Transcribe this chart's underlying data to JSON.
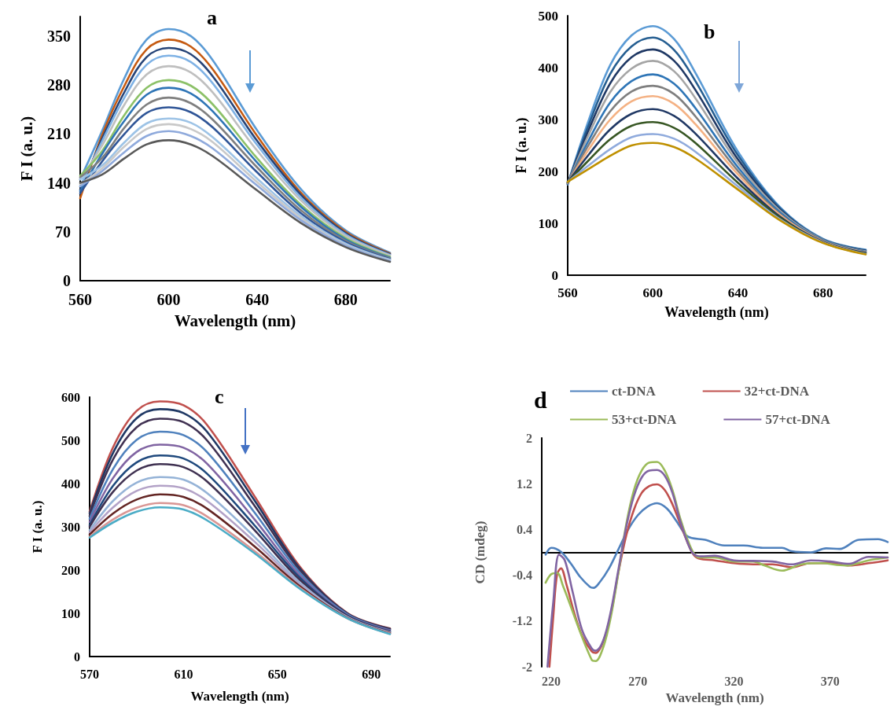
{
  "chart_data": [
    {
      "type": "line",
      "title": "a",
      "xlabel": "Wavelength (nm)",
      "ylabel": "F I (a. u.)",
      "x": [
        560,
        570,
        580,
        590,
        600,
        610,
        620,
        640,
        660,
        680,
        700
      ],
      "xlim": [
        560,
        700
      ],
      "xticks": [
        560,
        600,
        640,
        680
      ],
      "ylim": [
        0,
        378
      ],
      "yticks": [
        0,
        70,
        140,
        210,
        280,
        350
      ],
      "grid": false,
      "legend": false,
      "series": [
        {
          "color": "#5b9bd5",
          "values": [
            145,
            215,
            290,
            345,
            360,
            350,
            315,
            215,
            130,
            72,
            40
          ]
        },
        {
          "color": "#c55a11",
          "values": [
            118,
            209,
            279,
            331,
            345,
            335,
            302,
            207,
            125,
            70,
            39
          ]
        },
        {
          "color": "#264478",
          "values": [
            130,
            204,
            270,
            320,
            333,
            324,
            292,
            200,
            122,
            68,
            38
          ]
        },
        {
          "color": "#7fb2e5",
          "values": [
            135,
            200,
            262,
            309,
            322,
            313,
            282,
            194,
            118,
            66,
            37
          ]
        },
        {
          "color": "#bfbfbf",
          "values": [
            145,
            194,
            252,
            295,
            307,
            298,
            269,
            186,
            114,
            64,
            36
          ]
        },
        {
          "color": "#8cc168",
          "values": [
            150,
            186,
            237,
            276,
            287,
            279,
            252,
            175,
            108,
            61,
            34
          ]
        },
        {
          "color": "#2e75b6",
          "values": [
            128,
            182,
            229,
            266,
            276,
            268,
            242,
            169,
            105,
            59,
            33
          ]
        },
        {
          "color": "#7f7f7f",
          "values": [
            148,
            176,
            219,
            252,
            262,
            254,
            230,
            162,
            100,
            57,
            32
          ]
        },
        {
          "color": "#2f5597",
          "values": [
            125,
            171,
            210,
            240,
            248,
            241,
            219,
            155,
            96,
            55,
            31
          ]
        },
        {
          "color": "#9dc3e6",
          "values": [
            145,
            165,
            198,
            225,
            232,
            226,
            205,
            146,
            92,
            53,
            30
          ]
        },
        {
          "color": "#c9c9c9",
          "values": [
            138,
            161,
            192,
            217,
            224,
            217,
            198,
            141,
            89,
            51,
            29
          ]
        },
        {
          "color": "#8faadc",
          "values": [
            135,
            157,
            184,
            207,
            214,
            207,
            189,
            136,
            86,
            50,
            28
          ]
        },
        {
          "color": "#595959",
          "values": [
            140,
            152,
            175,
            195,
            201,
            195,
            178,
            129,
            82,
            48,
            27
          ]
        }
      ]
    },
    {
      "type": "line",
      "title": "b",
      "xlabel": "Wavelength (nm)",
      "ylabel": "F I (a. u.)",
      "x": [
        560,
        570,
        580,
        590,
        600,
        610,
        620,
        640,
        660,
        680,
        700
      ],
      "xlim": [
        560,
        700
      ],
      "xticks": [
        560,
        600,
        640,
        680
      ],
      "ylim": [
        0,
        500
      ],
      "yticks": [
        0,
        100,
        200,
        300,
        400,
        500
      ],
      "grid": false,
      "legend": false,
      "series": [
        {
          "color": "#5b9bd5",
          "values": [
            175,
            300,
            405,
            462,
            480,
            455,
            390,
            238,
            130,
            70,
            49
          ]
        },
        {
          "color": "#255e91",
          "values": [
            176,
            291,
            388,
            441,
            458,
            434,
            374,
            231,
            128,
            69,
            48
          ]
        },
        {
          "color": "#1f3864",
          "values": [
            176,
            281,
            370,
            420,
            435,
            413,
            357,
            223,
            125,
            68,
            47
          ]
        },
        {
          "color": "#a5a5a5",
          "values": [
            177,
            272,
            353,
            398,
            413,
            393,
            341,
            216,
            123,
            68,
            46
          ]
        },
        {
          "color": "#2e75b6",
          "values": [
            177,
            261,
            333,
            374,
            387,
            369,
            322,
            208,
            120,
            67,
            45
          ]
        },
        {
          "color": "#7f7f7f",
          "values": [
            178,
            252,
            316,
            354,
            365,
            349,
            306,
            201,
            117,
            66,
            44
          ]
        },
        {
          "color": "#f4b183",
          "values": [
            178,
            243,
            300,
            335,
            345,
            330,
            291,
            194,
            115,
            65,
            44
          ]
        },
        {
          "color": "#203864",
          "values": [
            179,
            233,
            281,
            311,
            320,
            307,
            273,
            186,
            112,
            64,
            43
          ]
        },
        {
          "color": "#375623",
          "values": [
            179,
            222,
            262,
            288,
            295,
            284,
            255,
            178,
            110,
            63,
            42
          ]
        },
        {
          "color": "#8faadc",
          "values": [
            180,
            212,
            243,
            266,
            272,
            263,
            238,
            171,
            107,
            63,
            41
          ]
        },
        {
          "color": "#bf9000",
          "values": [
            180,
            205,
            230,
            250,
            255,
            247,
            225,
            165,
            105,
            62,
            40
          ]
        }
      ]
    },
    {
      "type": "line",
      "title": "c",
      "xlabel": "Wavelength (nm)",
      "ylabel": "F I (a. u.)",
      "x": [
        570,
        580,
        590,
        600,
        610,
        620,
        640,
        660,
        680,
        698
      ],
      "xlim": [
        570,
        698
      ],
      "xticks": [
        570,
        610,
        650,
        690
      ],
      "ylim": [
        0,
        600
      ],
      "yticks": [
        0,
        100,
        200,
        300,
        400,
        500,
        600
      ],
      "grid": false,
      "legend": false,
      "series": [
        {
          "color": "#c0504d",
          "values": [
            335,
            484,
            568,
            590,
            581,
            536,
            373,
            205,
            100,
            65
          ]
        },
        {
          "color": "#1f3864",
          "values": [
            331,
            471,
            551,
            572,
            563,
            520,
            363,
            201,
            99,
            64
          ]
        },
        {
          "color": "#403152",
          "values": [
            325,
            456,
            530,
            550,
            542,
            500,
            351,
            197,
            98,
            63
          ]
        },
        {
          "color": "#4f81bd",
          "values": [
            318,
            434,
            501,
            520,
            512,
            473,
            335,
            191,
            97,
            61
          ]
        },
        {
          "color": "#8064a2",
          "values": [
            311,
            413,
            473,
            490,
            483,
            446,
            319,
            185,
            95,
            60
          ]
        },
        {
          "color": "#1f497d",
          "values": [
            304,
            395,
            449,
            465,
            458,
            423,
            305,
            180,
            94,
            58
          ]
        },
        {
          "color": "#3f3151",
          "values": [
            300,
            381,
            430,
            445,
            438,
            405,
            294,
            175,
            93,
            57
          ]
        },
        {
          "color": "#95b3d7",
          "values": [
            292,
            360,
            402,
            415,
            409,
            378,
            278,
            169,
            91,
            56
          ]
        },
        {
          "color": "#b3a2c7",
          "values": [
            287,
            345,
            383,
            395,
            389,
            360,
            267,
            165,
            90,
            55
          ]
        },
        {
          "color": "#632523",
          "values": [
            282,
            331,
            363,
            375,
            369,
            342,
            256,
            161,
            89,
            54
          ]
        },
        {
          "color": "#d99694",
          "values": [
            277,
            317,
            344,
            355,
            350,
            324,
            245,
            157,
            88,
            53
          ]
        },
        {
          "color": "#4bacc6",
          "values": [
            275,
            310,
            335,
            345,
            340,
            315,
            240,
            155,
            88,
            52
          ]
        }
      ]
    },
    {
      "type": "line",
      "title": "d",
      "xlabel": "Wavelength (nm)",
      "ylabel": "CD (mdeg)",
      "xlim": [
        220,
        400
      ],
      "xticks": [
        220,
        270,
        320,
        370
      ],
      "ylim": [
        -2,
        2
      ],
      "yticks": [
        -2,
        -1.2,
        -0.4,
        0.4,
        1.2,
        2
      ],
      "grid": false,
      "legend": "top",
      "series": [
        {
          "name": "ct-DNA",
          "color": "#4f81bd",
          "x": [
            222,
            225,
            230,
            235,
            240,
            245,
            247,
            250,
            255,
            260,
            265,
            270,
            275,
            280,
            285,
            290,
            295,
            298,
            305,
            315,
            325,
            335,
            345,
            350,
            360,
            368,
            375,
            385,
            395,
            400
          ],
          "values": [
            -0.04,
            0.08,
            0.01,
            -0.19,
            -0.43,
            -0.6,
            -0.62,
            -0.53,
            -0.28,
            0.06,
            0.4,
            0.65,
            0.8,
            0.86,
            0.77,
            0.55,
            0.3,
            0.25,
            0.22,
            0.12,
            0.12,
            0.08,
            0.08,
            0.02,
            0,
            0.07,
            0.06,
            0.22,
            0.23,
            0.18
          ]
        },
        {
          "name": "32+ct-DNA",
          "color": "#c0504d",
          "x": [
            224,
            226,
            228,
            230,
            233,
            237,
            241,
            246,
            248,
            252,
            256,
            260,
            264,
            268,
            272,
            276,
            280,
            284,
            288,
            292,
            296,
            299,
            302,
            310,
            320,
            330,
            340,
            350,
            360,
            370,
            380,
            390,
            400
          ],
          "values": [
            -2,
            -1.12,
            -0.38,
            -0.28,
            -0.58,
            -1.07,
            -1.46,
            -1.73,
            -1.76,
            -1.56,
            -1.07,
            -0.33,
            0.3,
            0.75,
            1.04,
            1.16,
            1.19,
            1.09,
            0.84,
            0.5,
            0.16,
            -0.04,
            -0.11,
            -0.14,
            -0.19,
            -0.21,
            -0.21,
            -0.26,
            -0.19,
            -0.19,
            -0.23,
            -0.19,
            -0.14
          ]
        },
        {
          "name": "53+ct-DNA",
          "color": "#9bbb59",
          "x": [
            222,
            225,
            228,
            231,
            246,
            248,
            252,
            256,
            260,
            264,
            268,
            272,
            276,
            280,
            284,
            288,
            292,
            296,
            299,
            302,
            310,
            320,
            330,
            336,
            345,
            355,
            365,
            378,
            390,
            400
          ],
          "values": [
            -0.53,
            -0.38,
            -0.36,
            -0.58,
            -1.88,
            -1.9,
            -1.66,
            -1.12,
            -0.33,
            0.5,
            1.09,
            1.43,
            1.57,
            1.58,
            1.43,
            1.09,
            0.6,
            0.21,
            -0.01,
            -0.09,
            -0.09,
            -0.16,
            -0.16,
            -0.23,
            -0.32,
            -0.21,
            -0.19,
            -0.23,
            -0.14,
            -0.09
          ]
        },
        {
          "name": "57+ct-DNA",
          "color": "#8064a2",
          "x": [
            223,
            226,
            229,
            232,
            236,
            241,
            246,
            248,
            252,
            256,
            260,
            264,
            268,
            272,
            276,
            280,
            284,
            288,
            292,
            296,
            299,
            303,
            310,
            320,
            330,
            340,
            350,
            360,
            370,
            380,
            390,
            400
          ],
          "values": [
            -2,
            -0.87,
            -0.04,
            -0.14,
            -0.68,
            -1.36,
            -1.68,
            -1.72,
            -1.54,
            -1.02,
            -0.28,
            0.45,
            0.99,
            1.31,
            1.43,
            1.44,
            1.34,
            1.04,
            0.55,
            0.16,
            -0.03,
            -0.07,
            -0.06,
            -0.14,
            -0.15,
            -0.16,
            -0.21,
            -0.14,
            -0.16,
            -0.2,
            -0.08,
            -0.09
          ]
        }
      ]
    }
  ]
}
